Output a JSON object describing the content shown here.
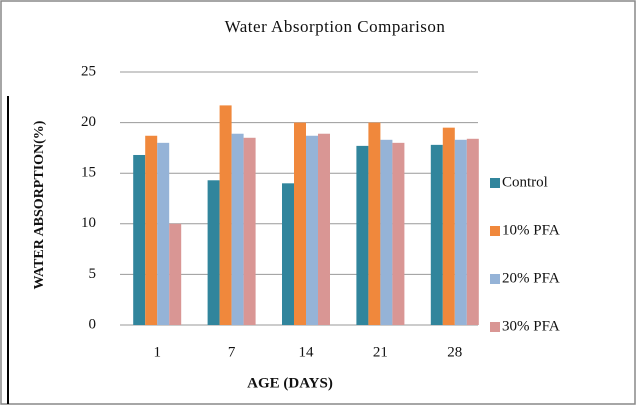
{
  "chart_data": {
    "type": "bar",
    "title": "Water Absorption Comparison",
    "x_label": "AGE (DAYS)",
    "y_label": "WATER ABSORPTION(%)",
    "categories": [
      "1",
      "7",
      "14",
      "21",
      "28"
    ],
    "series": [
      {
        "name": "Control",
        "color": "#31859c",
        "values": [
          16.8,
          14.3,
          14.0,
          17.7,
          17.8
        ]
      },
      {
        "name": "10% PFA",
        "color": "#f0883c",
        "values": [
          18.7,
          21.7,
          20.0,
          20.0,
          19.5
        ]
      },
      {
        "name": "20% PFA",
        "color": "#95b3d7",
        "values": [
          18.0,
          18.9,
          18.7,
          18.3,
          18.3
        ]
      },
      {
        "name": "30% PFA",
        "color": "#d99694",
        "values": [
          10.0,
          18.5,
          18.9,
          18.0,
          18.4
        ]
      }
    ],
    "ylim": [
      0,
      25
    ],
    "yticks": [
      0,
      5,
      10,
      15,
      20,
      25
    ],
    "grid": true,
    "legend": "right"
  }
}
